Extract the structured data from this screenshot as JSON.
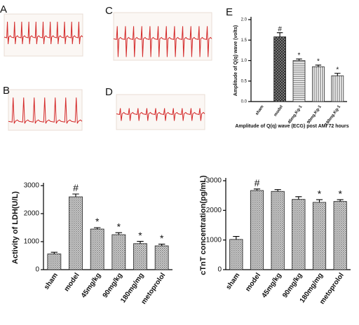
{
  "ecg_panels": [
    {
      "label": "A"
    },
    {
      "label": "B"
    },
    {
      "label": "C"
    },
    {
      "label": "D"
    }
  ],
  "chart_data": [
    {
      "type": "bar",
      "label": "E",
      "y_label": "Amplitude of Q(q) wave (volts)",
      "x_label": "Amplitude of Q(q) wave (ECG)  post AMI 72 hours",
      "categories": [
        "sham",
        "model",
        "45mg.Kg-1",
        "90mg.Kg-1",
        "180mg.Kg-1"
      ],
      "values": [
        0,
        1.58,
        1.0,
        0.85,
        0.63
      ],
      "errors": [
        0,
        0.1,
        0.04,
        0.04,
        0.06
      ],
      "markers": [
        null,
        "#",
        "*",
        "*",
        "*"
      ],
      "ylim": [
        0,
        2.0
      ],
      "yticks": [
        {
          "value": 0,
          "label": "0.0"
        },
        {
          "value": 0.5,
          "label": "0.5"
        },
        {
          "value": 1.0,
          "label": "1.0"
        },
        {
          "value": 1.5,
          "label": "1.5"
        },
        {
          "value": 2.0,
          "label": "2.0"
        }
      ],
      "patterns": [
        "hatch-h",
        "cross",
        "hatch-h",
        "hatch-v",
        "hatch-v"
      ]
    },
    {
      "type": "bar",
      "y_label": "Activity of LDH(U/L)",
      "categories": [
        "sham",
        "model",
        "45mg/kg",
        "90mg/kg",
        "180mg/mg",
        "metoprolol"
      ],
      "values": [
        560,
        2600,
        1450,
        1250,
        930,
        850
      ],
      "errors": [
        60,
        100,
        50,
        70,
        80,
        60
      ],
      "markers": [
        null,
        "#",
        "*",
        "*",
        "*",
        "*"
      ],
      "ylim": [
        0,
        3000
      ],
      "yticks": [
        0,
        1000,
        2000,
        3000
      ],
      "patterns": [
        "dots",
        "dots",
        "dots",
        "dots",
        "dots",
        "dots"
      ]
    },
    {
      "type": "bar",
      "y_label": "cTnT concentration(pg/mL)",
      "categories": [
        "sham",
        "model",
        "45mg/kg",
        "90mg/kg",
        "180mg/mg",
        "metoprolol"
      ],
      "values": [
        1020,
        2670,
        2640,
        2370,
        2270,
        2300
      ],
      "errors": [
        100,
        50,
        60,
        90,
        90,
        60
      ],
      "markers": [
        null,
        "#",
        null,
        null,
        "*",
        "*"
      ],
      "ylim": [
        0,
        3000
      ],
      "yticks": [
        0,
        1000,
        2000,
        3000
      ],
      "patterns": [
        "dots",
        "dots",
        "dots",
        "dots",
        "dots",
        "dots"
      ]
    }
  ]
}
